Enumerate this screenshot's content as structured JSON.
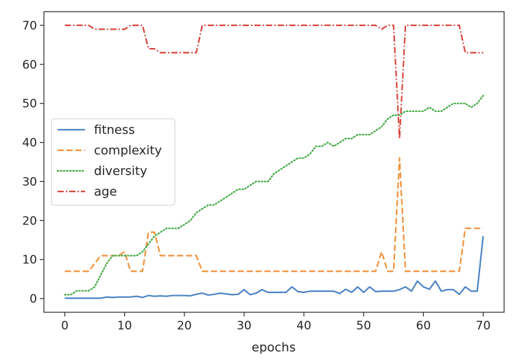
{
  "chart_data": {
    "type": "line",
    "xlabel": "epochs",
    "ylabel": "",
    "xlim": [
      -3.5,
      73.5
    ],
    "ylim": [
      -3.5,
      73.5
    ],
    "x_ticks": [
      0,
      10,
      20,
      30,
      40,
      50,
      60,
      70
    ],
    "y_ticks": [
      0,
      10,
      20,
      30,
      40,
      50,
      60,
      70
    ],
    "grid": false,
    "legend_position": "center-left",
    "series": [
      {
        "name": "fitness",
        "color": "#4c84c4",
        "dash": "solid",
        "values": [
          0.1,
          0.1,
          0.1,
          0.1,
          0.1,
          0.1,
          0.1,
          0.4,
          0.3,
          0.4,
          0.4,
          0.4,
          0.6,
          0.3,
          0.8,
          0.6,
          0.7,
          0.6,
          0.8,
          0.8,
          0.8,
          0.7,
          1.1,
          1.4,
          0.9,
          1.1,
          1.4,
          1.2,
          1.0,
          1.1,
          2.3,
          1.0,
          1.4,
          2.3,
          1.6,
          1.6,
          1.6,
          1.6,
          3.0,
          1.8,
          1.6,
          1.9,
          1.9,
          1.9,
          1.9,
          1.9,
          1.3,
          2.4,
          1.6,
          3.0,
          1.6,
          3.0,
          1.8,
          1.9,
          1.9,
          1.9,
          2.3,
          3.0,
          1.9,
          4.5,
          3.0,
          2.4,
          4.5,
          1.9,
          2.3,
          2.3,
          1.1,
          3.0,
          1.9,
          1.9,
          16.0
        ]
      },
      {
        "name": "complexity",
        "color": "#f0913a",
        "dash": "dashed",
        "values": [
          7,
          7,
          7,
          7,
          7,
          9,
          11,
          11,
          11,
          11,
          12,
          7,
          7,
          7,
          17,
          17,
          11,
          11,
          11,
          11,
          11,
          11,
          11,
          7,
          7,
          7,
          7,
          7,
          7,
          7,
          7,
          7,
          7,
          7,
          7,
          7,
          7,
          7,
          7,
          7,
          7,
          7,
          7,
          7,
          7,
          7,
          7,
          7,
          7,
          7,
          7,
          7,
          7,
          12,
          7,
          7,
          36,
          7,
          7,
          7,
          7,
          7,
          7,
          7,
          7,
          7,
          7,
          18,
          18,
          18,
          18
        ]
      },
      {
        "name": "diversity",
        "color": "#3fa83f",
        "dash": "dotted",
        "values": [
          1,
          1,
          2,
          2,
          2,
          3,
          6,
          9,
          11,
          11,
          11,
          11,
          11,
          12,
          14,
          16,
          17,
          18,
          18,
          18,
          19,
          20,
          22,
          23,
          24,
          24,
          25,
          26,
          27,
          28,
          28,
          29,
          30,
          30,
          30,
          32,
          33,
          34,
          35,
          36,
          36,
          37,
          39,
          39,
          40,
          39,
          40,
          41,
          41,
          42,
          42,
          42,
          43,
          44,
          46,
          47,
          47,
          48,
          48,
          48,
          48,
          49,
          48,
          48,
          49,
          50,
          50,
          50,
          49,
          50,
          52
        ]
      },
      {
        "name": "age",
        "color": "#d9463f",
        "dash": "dashdot",
        "values": [
          70,
          70,
          70,
          70,
          70,
          69,
          69,
          69,
          69,
          69,
          69,
          70,
          70,
          70,
          64,
          64,
          63,
          63,
          63,
          63,
          63,
          63,
          63,
          70,
          70,
          70,
          70,
          70,
          70,
          70,
          70,
          70,
          70,
          70,
          70,
          70,
          70,
          70,
          70,
          70,
          70,
          70,
          70,
          70,
          70,
          70,
          70,
          70,
          70,
          70,
          70,
          70,
          70,
          69,
          70,
          70,
          41,
          70,
          70,
          70,
          70,
          70,
          70,
          70,
          70,
          70,
          70,
          63,
          63,
          63,
          63
        ]
      }
    ]
  }
}
